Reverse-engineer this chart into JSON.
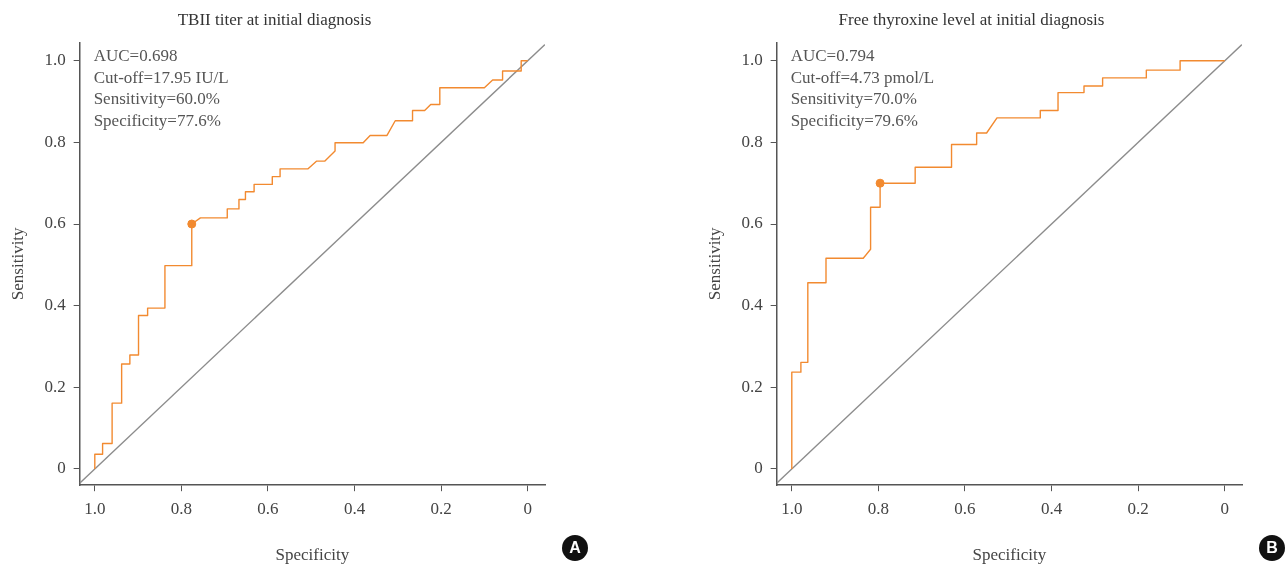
{
  "chart_data": [
    {
      "type": "line",
      "title": "TBII titer at initial diagnosis",
      "xlabel": "Specificity",
      "ylabel": "Sensitivity",
      "xlim": [
        1.035,
        -0.04
      ],
      "ylim": [
        -0.04,
        1.045
      ],
      "xticks": [
        {
          "value": 1,
          "label": "1.0"
        },
        0.8,
        0.6,
        0.4,
        0.2,
        0
      ],
      "yticks": [
        0,
        0.2,
        0.4,
        0.6,
        0.8,
        {
          "value": 1,
          "label": "1.0"
        }
      ],
      "grid": false,
      "legend": false,
      "annotations": [
        "AUC=0.698",
        "Cut-off=17.95 IU/L",
        "Sensitivity=60.0%",
        "Specificity=77.6%",
        "A"
      ],
      "series": [
        {
          "type": "line",
          "color": "#f28a30",
          "x": [
            1.0,
            1.0,
            0.982,
            0.982,
            0.96,
            0.96,
            0.938,
            0.938,
            0.919,
            0.919,
            0.899,
            0.899,
            0.878,
            0.878,
            0.838,
            0.838,
            0.776,
            0.776,
            0.756,
            0.694,
            0.694,
            0.667,
            0.667,
            0.652,
            0.652,
            0.632,
            0.632,
            0.59,
            0.59,
            0.572,
            0.572,
            0.508,
            0.488,
            0.469,
            0.445,
            0.445,
            0.38,
            0.364,
            0.325,
            0.306,
            0.266,
            0.266,
            0.238,
            0.224,
            0.203,
            0.203,
            0.1,
            0.081,
            0.058,
            0.058,
            0.015,
            0.015,
            0.0
          ],
          "values": [
            0.0,
            0.036,
            0.036,
            0.062,
            0.062,
            0.161,
            0.161,
            0.257,
            0.257,
            0.279,
            0.279,
            0.376,
            0.376,
            0.394,
            0.394,
            0.498,
            0.498,
            0.6,
            0.615,
            0.615,
            0.637,
            0.637,
            0.66,
            0.66,
            0.679,
            0.679,
            0.697,
            0.697,
            0.716,
            0.716,
            0.735,
            0.735,
            0.754,
            0.754,
            0.779,
            0.799,
            0.799,
            0.817,
            0.817,
            0.853,
            0.853,
            0.878,
            0.878,
            0.893,
            0.893,
            0.934,
            0.934,
            0.953,
            0.953,
            0.975,
            0.975,
            1.0,
            1.0
          ]
        },
        {
          "type": "line",
          "color": "#8c8c8c",
          "x": [
            1.035,
            -0.04
          ],
          "values": [
            -0.035,
            1.04
          ]
        },
        {
          "type": "scatter",
          "marker": "circle",
          "color": "#f28a30",
          "x": [
            0.776
          ],
          "values": [
            0.6
          ]
        }
      ]
    },
    {
      "type": "line",
      "title": "Free thyroxine level at initial diagnosis",
      "xlabel": "Specificity",
      "ylabel": "Sensitivity",
      "xlim": [
        1.035,
        -0.04
      ],
      "ylim": [
        -0.04,
        1.045
      ],
      "xticks": [
        {
          "value": 1,
          "label": "1.0"
        },
        0.8,
        0.6,
        0.4,
        0.2,
        0
      ],
      "yticks": [
        0,
        0.2,
        0.4,
        0.6,
        0.8,
        {
          "value": 1,
          "label": "1.0"
        }
      ],
      "grid": false,
      "legend": false,
      "annotations": [
        "AUC=0.794",
        "Cut-off=4.73 pmol/L",
        "Sensitivity=70.0%",
        "Specificity=79.6%",
        "B"
      ],
      "series": [
        {
          "type": "line",
          "color": "#f28a30",
          "x": [
            1.0,
            1.0,
            0.979,
            0.979,
            0.963,
            0.963,
            0.921,
            0.921,
            0.835,
            0.818,
            0.818,
            0.796,
            0.796,
            0.715,
            0.715,
            0.631,
            0.631,
            0.573,
            0.573,
            0.55,
            0.526,
            0.426,
            0.426,
            0.385,
            0.385,
            0.325,
            0.325,
            0.282,
            0.282,
            0.181,
            0.181,
            0.103,
            0.103,
            0.0
          ],
          "values": [
            0.0,
            0.237,
            0.237,
            0.261,
            0.261,
            0.456,
            0.456,
            0.516,
            0.516,
            0.538,
            0.641,
            0.641,
            0.7,
            0.7,
            0.739,
            0.739,
            0.795,
            0.795,
            0.823,
            0.823,
            0.86,
            0.86,
            0.878,
            0.878,
            0.922,
            0.922,
            0.938,
            0.938,
            0.958,
            0.958,
            0.977,
            0.977,
            1.0,
            1.0
          ]
        },
        {
          "type": "line",
          "color": "#8c8c8c",
          "x": [
            1.035,
            -0.04
          ],
          "values": [
            -0.035,
            1.04
          ]
        },
        {
          "type": "scatter",
          "marker": "circle",
          "color": "#f28a30",
          "x": [
            0.796
          ],
          "values": [
            0.7
          ]
        }
      ]
    }
  ]
}
